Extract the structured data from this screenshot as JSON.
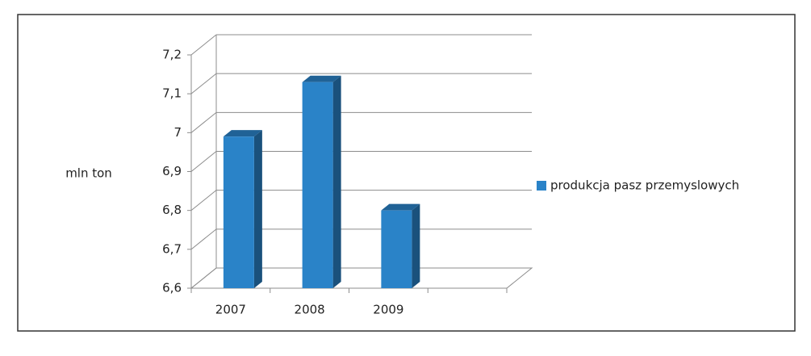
{
  "chart_data": {
    "type": "bar",
    "y_label": "mln ton",
    "categories": [
      "2007",
      "2008",
      "2009"
    ],
    "series": [
      {
        "name": "produkcja pasz przemyslowych",
        "color": "#2a83c8",
        "values": [
          6.99,
          7.13,
          6.8
        ]
      }
    ],
    "ylim": [
      6.6,
      7.2
    ],
    "yticks": [
      {
        "value": 6.6,
        "label": "6,6"
      },
      {
        "value": 6.7,
        "label": "6,7"
      },
      {
        "value": 6.8,
        "label": "6,8"
      },
      {
        "value": 6.9,
        "label": "6,9"
      },
      7,
      {
        "value": 7.1,
        "label": "7,1"
      },
      {
        "value": 7.2,
        "label": "7,2"
      }
    ],
    "grid": true,
    "legend": "right"
  }
}
